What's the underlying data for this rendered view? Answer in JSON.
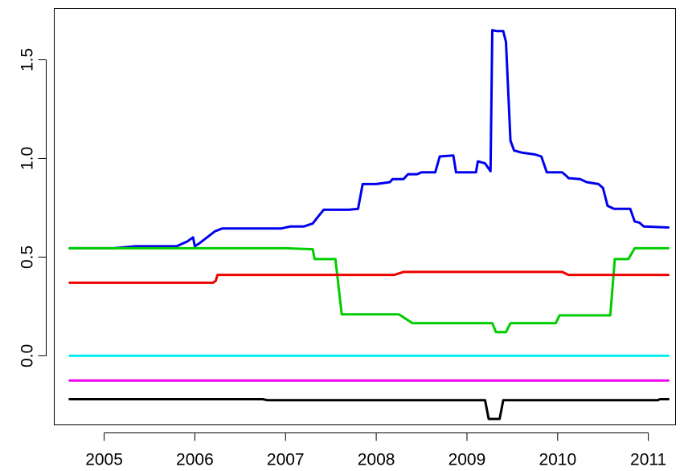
{
  "chart_data": {
    "type": "line",
    "title": "",
    "xlabel": "",
    "ylabel": "",
    "xlim": [
      2004.45,
      2011.3
    ],
    "ylim": [
      -0.35,
      1.76
    ],
    "x_ticks": [
      2005,
      2006,
      2007,
      2008,
      2009,
      2010,
      2011
    ],
    "x_tick_labels": [
      "2005",
      "2006",
      "2007",
      "2008",
      "2009",
      "2010",
      "2011"
    ],
    "y_ticks": [
      0.0,
      0.5,
      1.0,
      1.5
    ],
    "y_tick_labels": [
      "0.0",
      "0.5",
      "1.0",
      "1.5"
    ],
    "grid": false,
    "legend": "none",
    "series": [
      {
        "color": "#0000ee",
        "points": [
          [
            2004.62,
            0.545
          ],
          [
            2005.1,
            0.545
          ],
          [
            2005.35,
            0.555
          ],
          [
            2005.8,
            0.555
          ],
          [
            2005.92,
            0.58
          ],
          [
            2005.98,
            0.6
          ],
          [
            2006.0,
            0.555
          ],
          [
            2006.05,
            0.57
          ],
          [
            2006.15,
            0.605
          ],
          [
            2006.22,
            0.63
          ],
          [
            2006.3,
            0.645
          ],
          [
            2006.95,
            0.645
          ],
          [
            2007.05,
            0.655
          ],
          [
            2007.2,
            0.655
          ],
          [
            2007.3,
            0.67
          ],
          [
            2007.35,
            0.7
          ],
          [
            2007.42,
            0.74
          ],
          [
            2007.7,
            0.74
          ],
          [
            2007.8,
            0.745
          ],
          [
            2007.85,
            0.87
          ],
          [
            2008.0,
            0.87
          ],
          [
            2008.15,
            0.88
          ],
          [
            2008.18,
            0.895
          ],
          [
            2008.3,
            0.895
          ],
          [
            2008.35,
            0.92
          ],
          [
            2008.45,
            0.92
          ],
          [
            2008.5,
            0.93
          ],
          [
            2008.65,
            0.93
          ],
          [
            2008.7,
            1.01
          ],
          [
            2008.85,
            1.015
          ],
          [
            2008.88,
            0.93
          ],
          [
            2009.1,
            0.93
          ],
          [
            2009.12,
            0.985
          ],
          [
            2009.2,
            0.975
          ],
          [
            2009.26,
            0.935
          ],
          [
            2009.28,
            1.65
          ],
          [
            2009.33,
            1.645
          ],
          [
            2009.4,
            1.645
          ],
          [
            2009.43,
            1.59
          ],
          [
            2009.48,
            1.09
          ],
          [
            2009.52,
            1.04
          ],
          [
            2009.6,
            1.03
          ],
          [
            2009.75,
            1.02
          ],
          [
            2009.82,
            1.01
          ],
          [
            2009.88,
            0.93
          ],
          [
            2010.05,
            0.93
          ],
          [
            2010.1,
            0.91
          ],
          [
            2010.12,
            0.9
          ],
          [
            2010.25,
            0.895
          ],
          [
            2010.32,
            0.88
          ],
          [
            2010.45,
            0.87
          ],
          [
            2010.5,
            0.85
          ],
          [
            2010.55,
            0.76
          ],
          [
            2010.62,
            0.745
          ],
          [
            2010.8,
            0.745
          ],
          [
            2010.85,
            0.68
          ],
          [
            2010.9,
            0.675
          ],
          [
            2010.95,
            0.655
          ],
          [
            2011.22,
            0.65
          ]
        ]
      },
      {
        "color": "#00cd00",
        "points": [
          [
            2004.62,
            0.545
          ],
          [
            2007.0,
            0.545
          ],
          [
            2007.3,
            0.54
          ],
          [
            2007.32,
            0.49
          ],
          [
            2007.55,
            0.49
          ],
          [
            2007.62,
            0.21
          ],
          [
            2008.25,
            0.21
          ],
          [
            2008.4,
            0.165
          ],
          [
            2009.28,
            0.165
          ],
          [
            2009.32,
            0.12
          ],
          [
            2009.43,
            0.12
          ],
          [
            2009.48,
            0.165
          ],
          [
            2009.98,
            0.165
          ],
          [
            2010.02,
            0.205
          ],
          [
            2010.58,
            0.205
          ],
          [
            2010.63,
            0.49
          ],
          [
            2010.78,
            0.49
          ],
          [
            2010.85,
            0.545
          ],
          [
            2011.22,
            0.545
          ]
        ]
      },
      {
        "color": "#ee0000",
        "points": [
          [
            2004.62,
            0.37
          ],
          [
            2006.2,
            0.37
          ],
          [
            2006.23,
            0.38
          ],
          [
            2006.25,
            0.41
          ],
          [
            2008.2,
            0.41
          ],
          [
            2008.3,
            0.425
          ],
          [
            2010.05,
            0.425
          ],
          [
            2010.12,
            0.41
          ],
          [
            2011.22,
            0.41
          ]
        ]
      },
      {
        "color": "#00eeee",
        "points": [
          [
            2004.62,
            0.0
          ],
          [
            2011.22,
            0.0
          ]
        ]
      },
      {
        "color": "#ee00ee",
        "points": [
          [
            2004.62,
            -0.125
          ],
          [
            2011.22,
            -0.125
          ]
        ]
      },
      {
        "color": "#000000",
        "points": [
          [
            2004.62,
            -0.22
          ],
          [
            2006.75,
            -0.22
          ],
          [
            2006.8,
            -0.225
          ],
          [
            2007.0,
            -0.225
          ],
          [
            2009.2,
            -0.225
          ],
          [
            2009.24,
            -0.32
          ],
          [
            2009.3,
            -0.32
          ],
          [
            2009.36,
            -0.32
          ],
          [
            2009.4,
            -0.225
          ],
          [
            2011.1,
            -0.225
          ],
          [
            2011.13,
            -0.22
          ],
          [
            2011.22,
            -0.22
          ]
        ]
      }
    ]
  }
}
